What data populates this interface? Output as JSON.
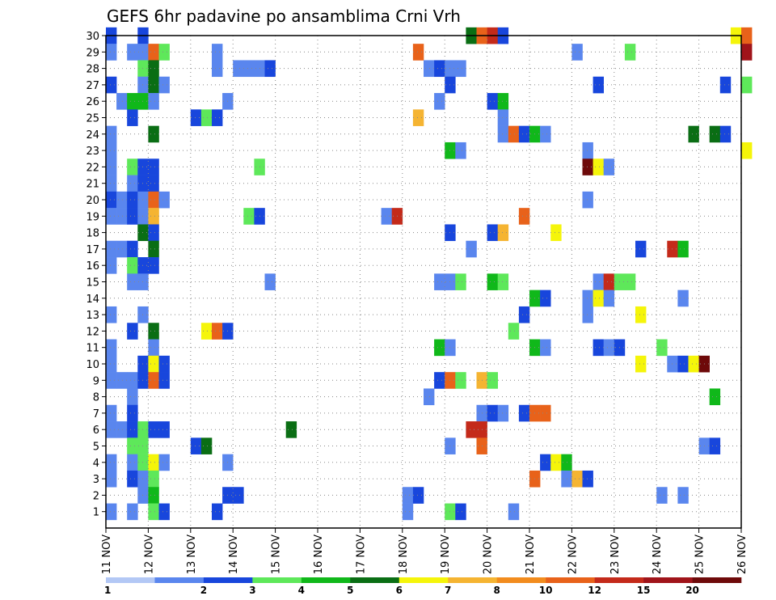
{
  "chart_data": {
    "type": "heatmap",
    "title": "GEFS 6hr padavine po ansamblima Crni Vrh",
    "xlabel": "",
    "ylabel": "",
    "x_ticks": [
      "11 NOV",
      "12 NOV",
      "13 NOV",
      "14 NOV",
      "15 NOV",
      "16 NOV",
      "17 NOV",
      "18 NOV",
      "19 NOV",
      "20 NOV",
      "21 NOV",
      "22 NOV",
      "23 NOV",
      "24 NOV",
      "25 NOV",
      "26 NOV"
    ],
    "x_range_days": [
      11,
      26
    ],
    "y_ticks": [
      1,
      2,
      3,
      4,
      5,
      6,
      7,
      8,
      9,
      10,
      11,
      12,
      13,
      14,
      15,
      16,
      17,
      18,
      19,
      20,
      21,
      22,
      23,
      24,
      25,
      26,
      27,
      28,
      29,
      30
    ],
    "y_range": [
      0,
      30
    ],
    "steps_per_day": 4,
    "grid": "dotted",
    "colorbar": {
      "position": "bottom",
      "labels": [
        "1",
        "2",
        "3",
        "4",
        "5",
        "6",
        "7",
        "8",
        "10",
        "12",
        "15",
        "20"
      ],
      "colors": [
        "#b3c8f5",
        "#5a86ee",
        "#1846dc",
        "#5ee85a",
        "#10b81a",
        "#0a6e14",
        "#f5f50a",
        "#f5b432",
        "#f28c1e",
        "#e8621a",
        "#c42a1a",
        "#a0141a",
        "#6e0a0a"
      ]
    },
    "cells": [
      [
        0,
        30,
        2
      ],
      [
        3,
        30,
        2
      ],
      [
        34,
        30,
        5
      ],
      [
        35,
        30,
        9
      ],
      [
        36,
        30,
        10
      ],
      [
        37,
        30,
        2
      ],
      [
        59,
        30,
        6
      ],
      [
        60,
        30,
        9
      ],
      [
        0,
        29,
        1
      ],
      [
        2,
        29,
        1
      ],
      [
        3,
        29,
        1
      ],
      [
        4,
        29,
        9
      ],
      [
        5,
        29,
        3
      ],
      [
        10,
        29,
        1
      ],
      [
        29,
        29,
        9
      ],
      [
        44,
        29,
        1
      ],
      [
        49,
        29,
        3
      ],
      [
        60,
        29,
        11
      ],
      [
        3,
        28,
        3
      ],
      [
        4,
        28,
        5
      ],
      [
        10,
        28,
        1
      ],
      [
        12,
        28,
        1
      ],
      [
        13,
        28,
        1
      ],
      [
        14,
        28,
        1
      ],
      [
        15,
        28,
        2
      ],
      [
        30,
        28,
        1
      ],
      [
        31,
        28,
        2
      ],
      [
        32,
        28,
        1
      ],
      [
        33,
        28,
        1
      ],
      [
        0,
        27,
        2
      ],
      [
        3,
        27,
        1
      ],
      [
        4,
        27,
        5
      ],
      [
        5,
        27,
        1
      ],
      [
        32,
        27,
        2
      ],
      [
        46,
        27,
        2
      ],
      [
        58,
        27,
        2
      ],
      [
        60,
        27,
        3
      ],
      [
        1,
        26,
        1
      ],
      [
        2,
        26,
        4
      ],
      [
        3,
        26,
        4
      ],
      [
        4,
        26,
        1
      ],
      [
        11,
        26,
        1
      ],
      [
        31,
        26,
        1
      ],
      [
        36,
        26,
        2
      ],
      [
        37,
        26,
        4
      ],
      [
        2,
        25,
        2
      ],
      [
        8,
        25,
        2
      ],
      [
        9,
        25,
        3
      ],
      [
        10,
        25,
        2
      ],
      [
        29,
        25,
        7
      ],
      [
        37,
        25,
        1
      ],
      [
        0,
        24,
        1
      ],
      [
        4,
        24,
        5
      ],
      [
        37,
        24,
        1
      ],
      [
        38,
        24,
        9
      ],
      [
        39,
        24,
        2
      ],
      [
        40,
        24,
        4
      ],
      [
        41,
        24,
        1
      ],
      [
        55,
        24,
        5
      ],
      [
        57,
        24,
        5
      ],
      [
        58,
        24,
        2
      ],
      [
        0,
        23,
        1
      ],
      [
        32,
        23,
        4
      ],
      [
        33,
        23,
        1
      ],
      [
        45,
        23,
        1
      ],
      [
        60,
        23,
        6
      ],
      [
        0,
        22,
        1
      ],
      [
        2,
        22,
        3
      ],
      [
        3,
        22,
        2
      ],
      [
        4,
        22,
        2
      ],
      [
        14,
        22,
        3
      ],
      [
        45,
        22,
        12
      ],
      [
        46,
        22,
        6
      ],
      [
        47,
        22,
        1
      ],
      [
        0,
        21,
        1
      ],
      [
        2,
        21,
        1
      ],
      [
        3,
        21,
        2
      ],
      [
        4,
        21,
        2
      ],
      [
        0,
        20,
        2
      ],
      [
        1,
        20,
        1
      ],
      [
        2,
        20,
        2
      ],
      [
        3,
        20,
        1
      ],
      [
        4,
        20,
        9
      ],
      [
        5,
        20,
        1
      ],
      [
        45,
        20,
        1
      ],
      [
        0,
        19,
        1
      ],
      [
        1,
        19,
        1
      ],
      [
        2,
        19,
        2
      ],
      [
        3,
        19,
        1
      ],
      [
        4,
        19,
        7
      ],
      [
        13,
        19,
        3
      ],
      [
        14,
        19,
        2
      ],
      [
        26,
        19,
        1
      ],
      [
        27,
        19,
        10
      ],
      [
        39,
        19,
        9
      ],
      [
        3,
        18,
        5
      ],
      [
        4,
        18,
        2
      ],
      [
        32,
        18,
        2
      ],
      [
        36,
        18,
        2
      ],
      [
        37,
        18,
        7
      ],
      [
        42,
        18,
        6
      ],
      [
        0,
        17,
        1
      ],
      [
        1,
        17,
        1
      ],
      [
        2,
        17,
        2
      ],
      [
        4,
        17,
        5
      ],
      [
        34,
        17,
        1
      ],
      [
        50,
        17,
        2
      ],
      [
        53,
        17,
        10
      ],
      [
        54,
        17,
        4
      ],
      [
        0,
        16,
        1
      ],
      [
        2,
        16,
        3
      ],
      [
        3,
        16,
        2
      ],
      [
        4,
        16,
        2
      ],
      [
        2,
        15,
        1
      ],
      [
        3,
        15,
        1
      ],
      [
        15,
        15,
        1
      ],
      [
        31,
        15,
        1
      ],
      [
        32,
        15,
        1
      ],
      [
        33,
        15,
        3
      ],
      [
        36,
        15,
        4
      ],
      [
        37,
        15,
        3
      ],
      [
        46,
        15,
        1
      ],
      [
        47,
        15,
        10
      ],
      [
        48,
        15,
        3
      ],
      [
        49,
        15,
        3
      ],
      [
        40,
        14,
        4
      ],
      [
        41,
        14,
        2
      ],
      [
        45,
        14,
        1
      ],
      [
        46,
        14,
        6
      ],
      [
        47,
        14,
        1
      ],
      [
        54,
        14,
        1
      ],
      [
        0,
        13,
        1
      ],
      [
        3,
        13,
        1
      ],
      [
        50,
        13,
        6
      ],
      [
        39,
        13,
        2
      ],
      [
        45,
        13,
        1
      ],
      [
        2,
        12,
        2
      ],
      [
        4,
        12,
        5
      ],
      [
        9,
        12,
        6
      ],
      [
        10,
        12,
        9
      ],
      [
        11,
        12,
        2
      ],
      [
        38,
        12,
        3
      ],
      [
        0,
        11,
        1
      ],
      [
        4,
        11,
        1
      ],
      [
        31,
        11,
        4
      ],
      [
        32,
        11,
        1
      ],
      [
        40,
        11,
        4
      ],
      [
        41,
        11,
        1
      ],
      [
        46,
        11,
        2
      ],
      [
        47,
        11,
        1
      ],
      [
        48,
        11,
        2
      ],
      [
        52,
        11,
        3
      ],
      [
        0,
        10,
        1
      ],
      [
        3,
        10,
        2
      ],
      [
        4,
        10,
        6
      ],
      [
        5,
        10,
        2
      ],
      [
        50,
        10,
        6
      ],
      [
        53,
        10,
        1
      ],
      [
        54,
        10,
        2
      ],
      [
        55,
        10,
        6
      ],
      [
        56,
        10,
        12
      ],
      [
        0,
        9,
        1
      ],
      [
        1,
        9,
        1
      ],
      [
        2,
        9,
        1
      ],
      [
        3,
        9,
        2
      ],
      [
        4,
        9,
        9
      ],
      [
        5,
        9,
        2
      ],
      [
        31,
        9,
        2
      ],
      [
        32,
        9,
        9
      ],
      [
        33,
        9,
        3
      ],
      [
        35,
        9,
        7
      ],
      [
        36,
        9,
        3
      ],
      [
        2,
        8,
        1
      ],
      [
        30,
        8,
        1
      ],
      [
        57,
        8,
        4
      ],
      [
        0,
        7,
        1
      ],
      [
        2,
        7,
        2
      ],
      [
        35,
        7,
        1
      ],
      [
        36,
        7,
        2
      ],
      [
        37,
        7,
        1
      ],
      [
        39,
        7,
        2
      ],
      [
        40,
        7,
        9
      ],
      [
        41,
        7,
        9
      ],
      [
        0,
        6,
        1
      ],
      [
        1,
        6,
        1
      ],
      [
        2,
        6,
        2
      ],
      [
        3,
        6,
        3
      ],
      [
        4,
        6,
        2
      ],
      [
        5,
        6,
        2
      ],
      [
        17,
        6,
        5
      ],
      [
        34,
        6,
        10
      ],
      [
        35,
        6,
        10
      ],
      [
        2,
        5,
        3
      ],
      [
        3,
        5,
        3
      ],
      [
        8,
        5,
        2
      ],
      [
        9,
        5,
        5
      ],
      [
        32,
        5,
        1
      ],
      [
        35,
        5,
        9
      ],
      [
        56,
        5,
        1
      ],
      [
        57,
        5,
        2
      ],
      [
        0,
        4,
        1
      ],
      [
        2,
        4,
        1
      ],
      [
        3,
        4,
        3
      ],
      [
        4,
        4,
        6
      ],
      [
        5,
        4,
        1
      ],
      [
        11,
        4,
        1
      ],
      [
        41,
        4,
        2
      ],
      [
        42,
        4,
        6
      ],
      [
        43,
        4,
        4
      ],
      [
        0,
        3,
        1
      ],
      [
        2,
        3,
        2
      ],
      [
        3,
        3,
        1
      ],
      [
        4,
        3,
        3
      ],
      [
        40,
        3,
        9
      ],
      [
        43,
        3,
        1
      ],
      [
        44,
        3,
        7
      ],
      [
        45,
        3,
        2
      ],
      [
        3,
        2,
        1
      ],
      [
        4,
        2,
        4
      ],
      [
        11,
        2,
        2
      ],
      [
        12,
        2,
        2
      ],
      [
        28,
        2,
        1
      ],
      [
        29,
        2,
        2
      ],
      [
        52,
        2,
        1
      ],
      [
        54,
        2,
        1
      ],
      [
        0,
        1,
        1
      ],
      [
        2,
        1,
        1
      ],
      [
        4,
        1,
        3
      ],
      [
        5,
        1,
        2
      ],
      [
        10,
        1,
        2
      ],
      [
        28,
        1,
        1
      ],
      [
        32,
        1,
        3
      ],
      [
        33,
        1,
        2
      ],
      [
        38,
        1,
        1
      ]
    ]
  }
}
